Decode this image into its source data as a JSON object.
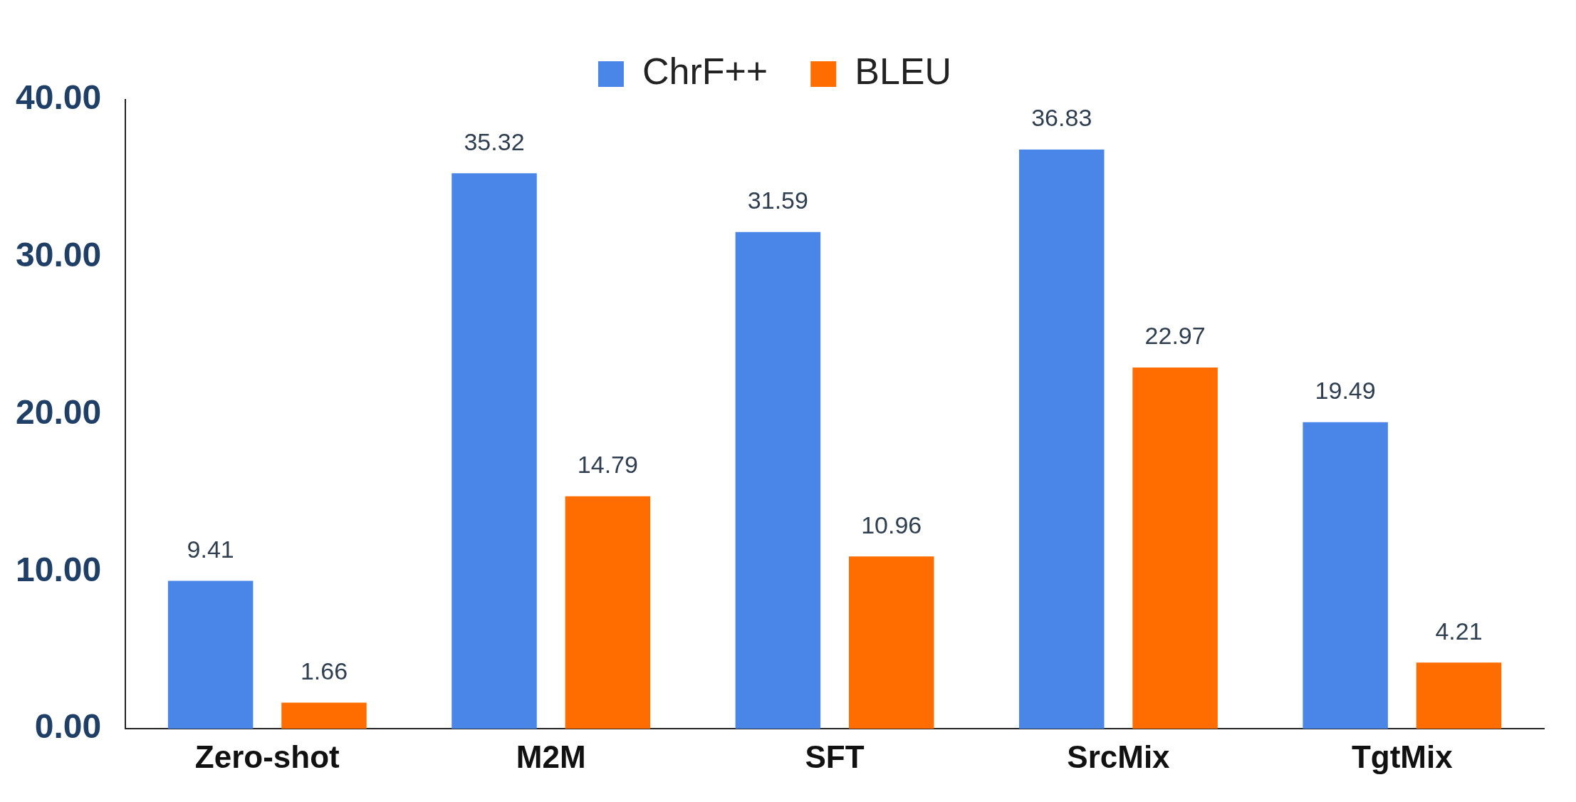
{
  "chart_data": {
    "type": "bar",
    "categories": [
      "Zero-shot",
      "M2M",
      "SFT",
      "SrcMix",
      "TgtMix"
    ],
    "series": [
      {
        "name": "ChrF++",
        "color": "#4a86e8",
        "values": [
          9.41,
          35.32,
          31.59,
          36.83,
          19.49
        ]
      },
      {
        "name": "BLEU",
        "color": "#ff6d01",
        "values": [
          1.66,
          14.79,
          10.96,
          22.97,
          4.21
        ]
      }
    ],
    "ylim": [
      0,
      40
    ],
    "yticks": [
      {
        "value": 0,
        "label": "0.00"
      },
      {
        "value": 10,
        "label": "10.00"
      },
      {
        "value": 20,
        "label": "20.00"
      },
      {
        "value": 30,
        "label": "30.00"
      },
      {
        "value": 40,
        "label": "40.00"
      }
    ],
    "grid": false,
    "legend": "top",
    "data_labels": true
  }
}
